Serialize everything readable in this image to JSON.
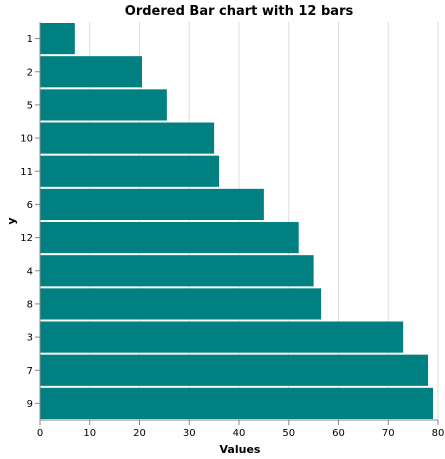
{
  "chart_data": {
    "type": "bar",
    "orientation": "horizontal",
    "title": "Ordered Bar chart with 12 bars",
    "xlabel": "Values",
    "ylabel": "y",
    "categories": [
      "1",
      "2",
      "5",
      "10",
      "11",
      "6",
      "12",
      "4",
      "8",
      "3",
      "7",
      "9"
    ],
    "values": [
      7,
      20.5,
      25.5,
      35,
      36,
      45,
      52,
      55,
      56.5,
      73,
      78,
      79
    ],
    "xlim": [
      0,
      80
    ],
    "xticks": [
      0,
      10,
      20,
      30,
      40,
      50,
      60,
      70,
      80
    ],
    "grid": true,
    "bar_color": "#008080"
  }
}
